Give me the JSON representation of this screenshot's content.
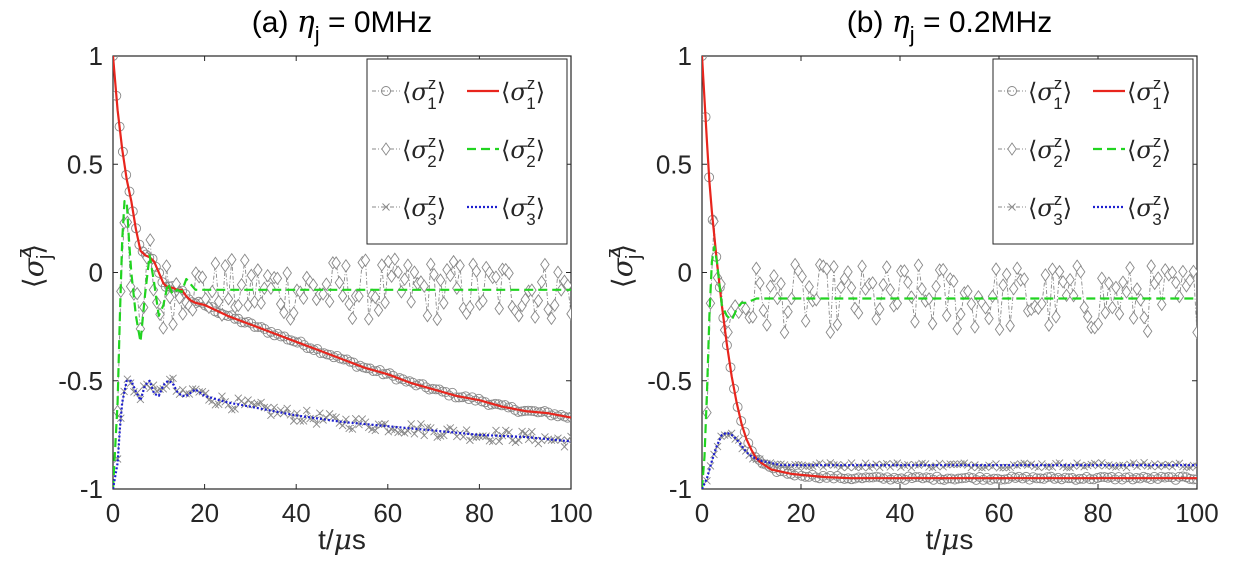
{
  "chart_data": [
    {
      "type": "line",
      "title": "(a) η_j = 0MHz",
      "title_prefix": "(a) ",
      "title_symbol": "η",
      "title_sub": "j",
      "title_suffix": " = 0MHz",
      "xlabel": "t/μs",
      "ylabel": "⟨σ_j^z⟩",
      "xlim": [
        0,
        100
      ],
      "ylim": [
        -1,
        1
      ],
      "xticks": [
        "0",
        "20",
        "40",
        "60",
        "80",
        "100"
      ],
      "yticks": [
        "-1",
        "-0.5",
        "0",
        "0.5",
        "1"
      ],
      "grid": false,
      "legend_position": "top-right",
      "legend": [
        {
          "left": "⟨σ_1^z⟩",
          "right": "⟨σ_1^z⟩"
        },
        {
          "left": "⟨σ_2^z⟩",
          "right": "⟨σ_2^z⟩"
        },
        {
          "left": "⟨σ_3^z⟩",
          "right": "⟨σ_3^z⟩"
        }
      ],
      "series": [
        {
          "kind": "line",
          "style": "solid",
          "color": "#e8251d",
          "x": [
            0,
            1,
            2,
            3,
            4,
            5,
            6,
            7,
            8,
            9,
            10,
            11,
            12,
            13,
            14,
            15,
            16,
            17,
            18,
            20,
            22,
            25,
            30,
            35,
            40,
            45,
            50,
            55,
            60,
            65,
            70,
            75,
            80,
            85,
            90,
            95,
            100
          ],
          "y": [
            1,
            0.75,
            0.57,
            0.43,
            0.33,
            0.2,
            0.1,
            0.08,
            0.07,
            0.05,
            0.0,
            -0.05,
            -0.07,
            -0.07,
            -0.08,
            -0.08,
            -0.11,
            -0.13,
            -0.14,
            -0.15,
            -0.17,
            -0.2,
            -0.24,
            -0.28,
            -0.32,
            -0.36,
            -0.4,
            -0.44,
            -0.47,
            -0.51,
            -0.54,
            -0.57,
            -0.59,
            -0.62,
            -0.64,
            -0.65,
            -0.67
          ]
        },
        {
          "kind": "line",
          "style": "dashed",
          "color": "#21d420",
          "x": [
            0,
            1,
            1.5,
            2,
            2.5,
            3,
            3.5,
            4,
            5,
            6,
            7,
            8,
            9,
            10,
            11,
            12,
            13,
            14,
            15,
            16,
            18,
            20,
            25,
            30,
            40,
            50,
            60,
            70,
            80,
            90,
            100
          ],
          "y": [
            -1,
            -0.6,
            -0.2,
            0.15,
            0.33,
            0.33,
            0.15,
            0.0,
            -0.2,
            -0.32,
            -0.1,
            0.08,
            -0.05,
            -0.2,
            -0.15,
            -0.05,
            -0.1,
            -0.08,
            -0.09,
            -0.03,
            -0.08,
            -0.08,
            -0.08,
            -0.08,
            -0.08,
            -0.08,
            -0.08,
            -0.08,
            -0.08,
            -0.08,
            -0.08
          ]
        },
        {
          "kind": "line",
          "style": "dotted",
          "color": "#1c1ecf",
          "x": [
            0,
            1,
            1.5,
            2,
            3,
            4,
            5,
            6,
            7,
            8,
            9,
            10,
            11,
            12,
            13,
            14,
            15,
            16,
            18,
            20,
            25,
            30,
            40,
            50,
            60,
            70,
            80,
            90,
            100
          ],
          "y": [
            -1,
            -0.88,
            -0.72,
            -0.6,
            -0.5,
            -0.5,
            -0.55,
            -0.59,
            -0.52,
            -0.5,
            -0.56,
            -0.57,
            -0.52,
            -0.5,
            -0.51,
            -0.55,
            -0.57,
            -0.57,
            -0.54,
            -0.57,
            -0.6,
            -0.62,
            -0.66,
            -0.69,
            -0.71,
            -0.73,
            -0.75,
            -0.76,
            -0.78
          ]
        }
      ],
      "noisy_series": [
        {
          "marker": "circle",
          "color": "#888888",
          "x_start": 0,
          "x_end": 100,
          "n": 140,
          "base": "series0",
          "noise": 0.01
        },
        {
          "marker": "diamond",
          "color": "#888888",
          "x_start": 1,
          "x_end": 100,
          "n": 140,
          "base": "series1",
          "noise": 0.09
        },
        {
          "marker": "cross",
          "color": "#888888",
          "x_start": 1,
          "x_end": 100,
          "n": 140,
          "base": "series2",
          "noise": 0.03
        }
      ]
    },
    {
      "type": "line",
      "title": "(b) η_j = 0.2MHz",
      "title_prefix": "(b) ",
      "title_symbol": "η",
      "title_sub": "j",
      "title_suffix": " = 0.2MHz",
      "xlabel": "t/μs",
      "ylabel": "⟨σ_j^z⟩",
      "xlim": [
        0,
        100
      ],
      "ylim": [
        -1,
        1
      ],
      "xticks": [
        "0",
        "20",
        "40",
        "60",
        "80",
        "100"
      ],
      "yticks": [
        "-1",
        "-0.5",
        "0",
        "0.5",
        "1"
      ],
      "grid": false,
      "legend_position": "top-right",
      "legend": [
        {
          "left": "⟨σ_1^z⟩",
          "right": "⟨σ_1^z⟩"
        },
        {
          "left": "⟨σ_2^z⟩",
          "right": "⟨σ_2^z⟩"
        },
        {
          "left": "⟨σ_3^z⟩",
          "right": "⟨σ_3^z⟩"
        }
      ],
      "series": [
        {
          "kind": "line",
          "style": "solid",
          "color": "#e8251d",
          "x": [
            0,
            0.5,
            1,
            1.5,
            2,
            3,
            4,
            5,
            6,
            7,
            8,
            9,
            10,
            11,
            12,
            14,
            16,
            18,
            20,
            25,
            30,
            40,
            50,
            60,
            70,
            80,
            90,
            100
          ],
          "y": [
            1,
            0.8,
            0.6,
            0.42,
            0.28,
            0.05,
            -0.15,
            -0.33,
            -0.48,
            -0.6,
            -0.7,
            -0.77,
            -0.82,
            -0.86,
            -0.88,
            -0.91,
            -0.92,
            -0.93,
            -0.935,
            -0.945,
            -0.95,
            -0.95,
            -0.95,
            -0.95,
            -0.95,
            -0.95,
            -0.95,
            -0.95
          ]
        },
        {
          "kind": "line",
          "style": "dashed",
          "color": "#21d420",
          "x": [
            0,
            0.5,
            1,
            1.5,
            2,
            2.5,
            3,
            3.5,
            4,
            5,
            6,
            7,
            8,
            9,
            10,
            11,
            12,
            14,
            16,
            20,
            30,
            40,
            60,
            80,
            100
          ],
          "y": [
            -1,
            -0.85,
            -0.55,
            -0.2,
            0.05,
            0.12,
            0.05,
            -0.05,
            -0.15,
            -0.2,
            -0.22,
            -0.17,
            -0.14,
            -0.14,
            -0.13,
            -0.12,
            -0.12,
            -0.12,
            -0.12,
            -0.12,
            -0.12,
            -0.12,
            -0.12,
            -0.12,
            -0.12
          ]
        },
        {
          "kind": "line",
          "style": "dotted",
          "color": "#1c1ecf",
          "x": [
            0,
            1,
            2,
            3,
            4,
            5,
            6,
            7,
            8,
            9,
            10,
            12,
            14,
            16,
            18,
            20,
            25,
            30,
            40,
            60,
            80,
            100
          ],
          "y": [
            -1,
            -0.95,
            -0.87,
            -0.8,
            -0.75,
            -0.74,
            -0.75,
            -0.77,
            -0.8,
            -0.83,
            -0.85,
            -0.87,
            -0.88,
            -0.89,
            -0.89,
            -0.89,
            -0.89,
            -0.89,
            -0.89,
            -0.89,
            -0.89,
            -0.89
          ]
        }
      ],
      "noisy_series": [
        {
          "marker": "circle",
          "color": "#888888",
          "x_start": 0,
          "x_end": 100,
          "n": 140,
          "base": "series0",
          "noise": 0.008
        },
        {
          "marker": "diamond",
          "color": "#888888",
          "x_start": 1,
          "x_end": 100,
          "n": 140,
          "base": "series1",
          "noise": 0.1
        },
        {
          "marker": "cross",
          "color": "#888888",
          "x_start": 1,
          "x_end": 100,
          "n": 140,
          "base": "series2",
          "noise": 0.012
        }
      ]
    }
  ]
}
